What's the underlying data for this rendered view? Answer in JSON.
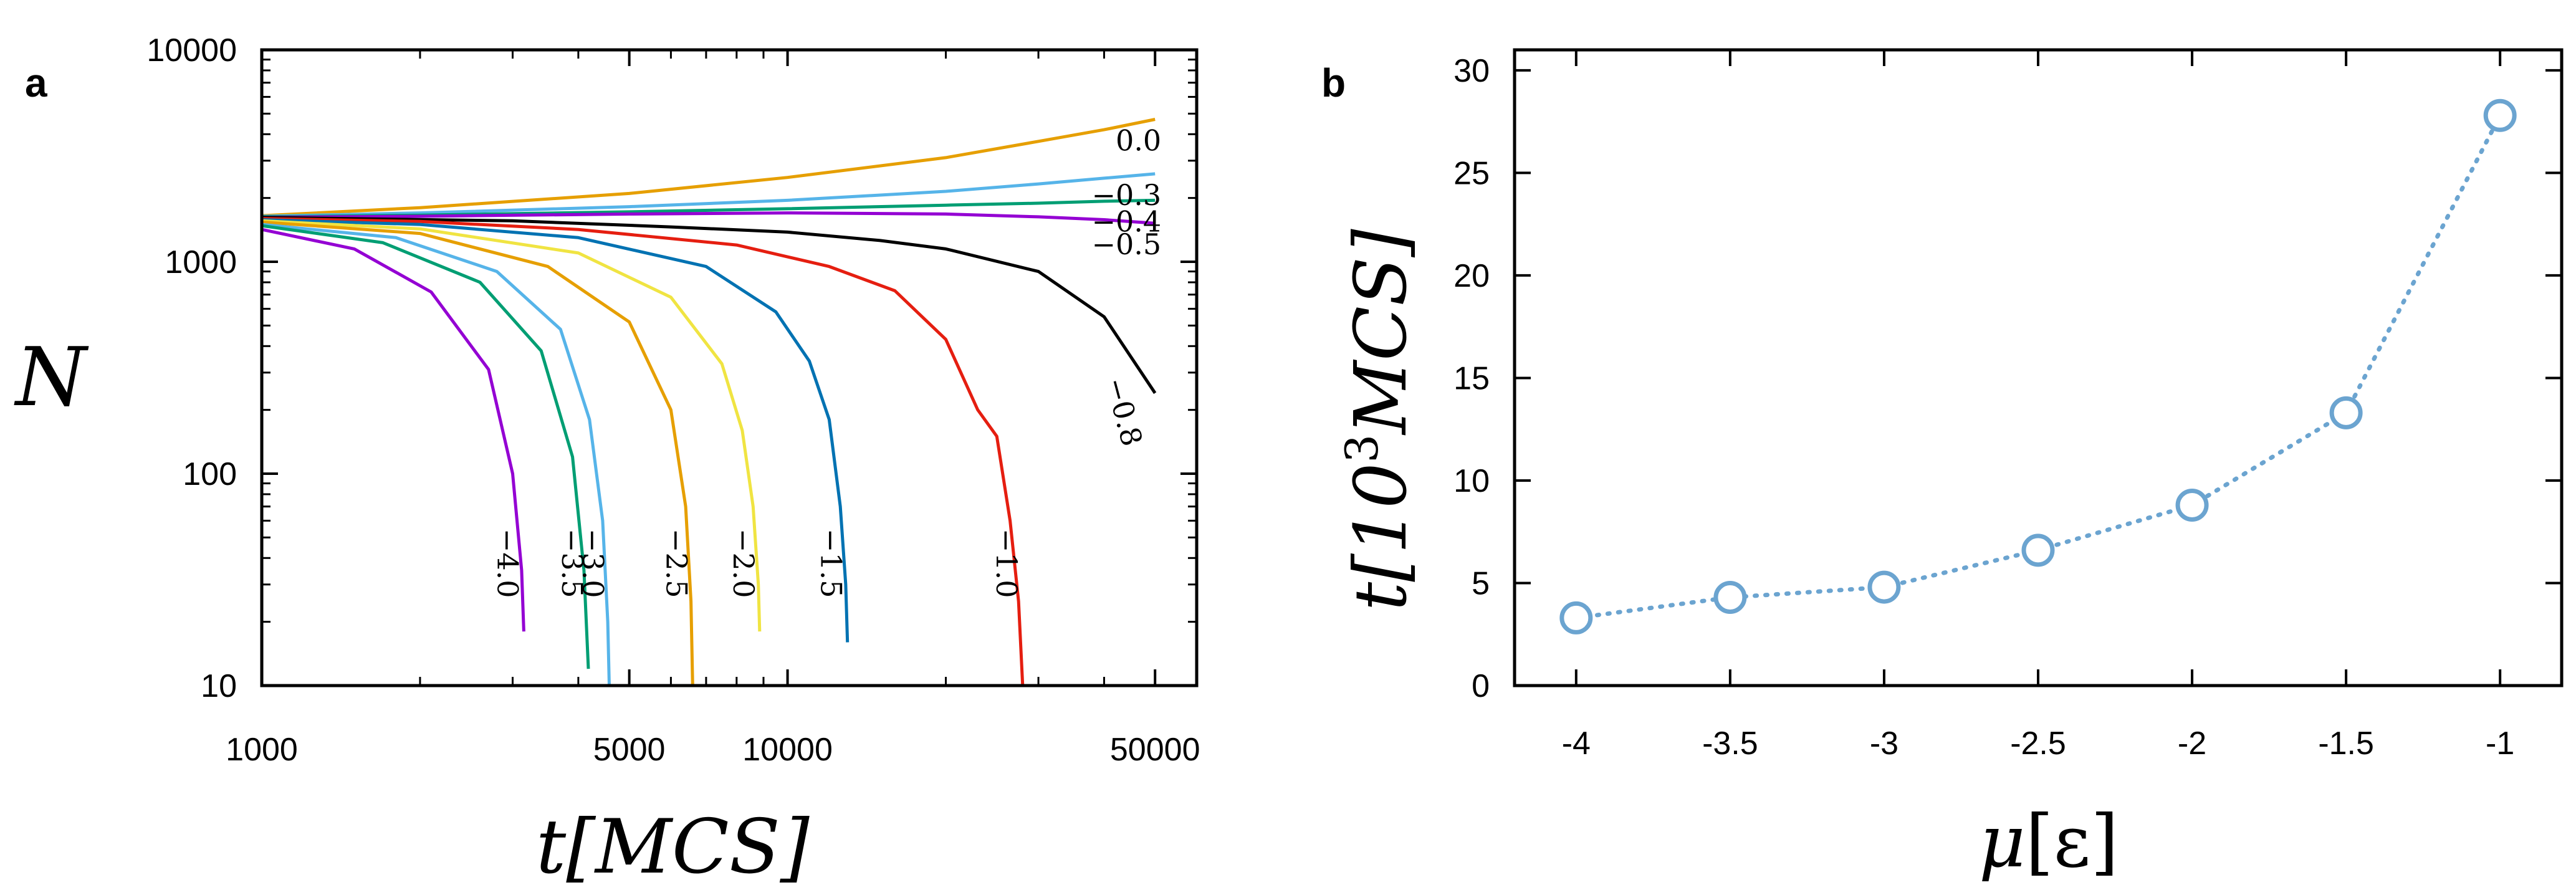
{
  "chart_data": [
    {
      "panel": "a",
      "type": "line",
      "xlabel": "t[MCS]",
      "ylabel": "N",
      "xscale": "log",
      "yscale": "log",
      "xlim": [
        1000,
        60000
      ],
      "ylim": [
        10,
        10000
      ],
      "xticks": [
        1000,
        5000,
        10000,
        50000
      ],
      "xtick_labels": [
        "1000",
        "5000",
        "10000",
        "50000"
      ],
      "yticks": [
        10,
        100,
        1000,
        10000
      ],
      "ytick_labels": [
        "10",
        "100",
        "1000",
        "10000"
      ],
      "series": [
        {
          "label": "0.0",
          "color": "#E69F00",
          "x": [
            1000,
            2000,
            5000,
            10000,
            20000,
            30000,
            40000,
            50000
          ],
          "y": [
            1650,
            1800,
            2100,
            2500,
            3100,
            3700,
            4200,
            4700
          ]
        },
        {
          "label": "−0.3",
          "color": "#56B4E9",
          "x": [
            1000,
            2000,
            5000,
            10000,
            20000,
            30000,
            40000,
            50000
          ],
          "y": [
            1640,
            1700,
            1820,
            1950,
            2150,
            2330,
            2480,
            2600
          ]
        },
        {
          "label": "−0.4",
          "color": "#009E73",
          "x": [
            1000,
            2000,
            5000,
            10000,
            20000,
            30000,
            40000,
            50000
          ],
          "y": [
            1630,
            1660,
            1720,
            1780,
            1850,
            1890,
            1930,
            1950
          ]
        },
        {
          "label": "−0.5",
          "color": "#9400D3",
          "x": [
            1000,
            2000,
            5000,
            10000,
            20000,
            30000,
            40000,
            50000
          ],
          "y": [
            1620,
            1640,
            1680,
            1700,
            1680,
            1630,
            1580,
            1520
          ]
        },
        {
          "label": "−0.8",
          "color": "#000000",
          "x": [
            1000,
            3000,
            6000,
            10000,
            15000,
            20000,
            30000,
            40000,
            50000
          ],
          "y": [
            1620,
            1560,
            1460,
            1380,
            1260,
            1150,
            900,
            550,
            240
          ]
        },
        {
          "label": "−1.0",
          "color": "#E51E10",
          "x": [
            1000,
            2000,
            4000,
            8000,
            12000,
            16000,
            20000,
            23000,
            25000,
            26500,
            27500,
            28000
          ],
          "y": [
            1600,
            1550,
            1420,
            1200,
            950,
            730,
            430,
            200,
            150,
            60,
            25,
            10
          ]
        },
        {
          "label": "−1.5",
          "color": "#0072B2",
          "x": [
            1000,
            2000,
            4000,
            7000,
            9500,
            11000,
            12000,
            12600,
            12900,
            13000
          ],
          "y": [
            1580,
            1500,
            1300,
            950,
            580,
            340,
            180,
            70,
            30,
            16
          ]
        },
        {
          "label": "−2.0",
          "color": "#F0E442",
          "x": [
            1000,
            2000,
            4000,
            6000,
            7500,
            8200,
            8600,
            8800,
            8850
          ],
          "y": [
            1560,
            1430,
            1100,
            680,
            330,
            160,
            70,
            30,
            18
          ]
        },
        {
          "label": "−2.5",
          "color": "#E69F00",
          "x": [
            1000,
            2000,
            3500,
            5000,
            6000,
            6400,
            6550,
            6600
          ],
          "y": [
            1540,
            1360,
            950,
            520,
            200,
            70,
            25,
            10
          ]
        },
        {
          "label": "−3.0",
          "color": "#56B4E9",
          "x": [
            1000,
            1800,
            2800,
            3700,
            4200,
            4450,
            4550,
            4580
          ],
          "y": [
            1500,
            1300,
            900,
            480,
            180,
            60,
            20,
            10
          ]
        },
        {
          "label": "−3.5",
          "color": "#009E73",
          "x": [
            1000,
            1700,
            2600,
            3400,
            3900,
            4100,
            4180
          ],
          "y": [
            1480,
            1230,
            800,
            380,
            120,
            35,
            12
          ]
        },
        {
          "label": "−4.0",
          "color": "#9400D3",
          "x": [
            1000,
            1500,
            2100,
            2700,
            3000,
            3120,
            3150
          ],
          "y": [
            1420,
            1150,
            720,
            310,
            100,
            35,
            18
          ]
        }
      ]
    },
    {
      "panel": "b",
      "type": "scatter",
      "xlabel": "μ[ε]",
      "ylabel": "t[10³MCS]",
      "xlim": [
        -4.2,
        -0.8
      ],
      "ylim": [
        0,
        31
      ],
      "xticks": [
        -4,
        -3.5,
        -3,
        -2.5,
        -2,
        -1.5,
        -1
      ],
      "xtick_labels": [
        "-4",
        "-3.5",
        "-3",
        "-2.5",
        "-2",
        "-1.5",
        "-1"
      ],
      "yticks": [
        0,
        5,
        10,
        15,
        20,
        25,
        30
      ],
      "ytick_labels": [
        "0",
        "5",
        "10",
        "15",
        "20",
        "25",
        "30"
      ],
      "marker": "open-circle",
      "line_style": "dotted",
      "color": "#6BA4D0",
      "x": [
        -4,
        -3.5,
        -3,
        -2.5,
        -2,
        -1.5,
        -1
      ],
      "y": [
        3.3,
        4.3,
        4.8,
        6.6,
        8.8,
        13.3,
        27.8
      ]
    }
  ],
  "panel_labels": {
    "a": "a",
    "b": "b"
  },
  "axis_labels": {
    "a_x": "t[MCS]",
    "a_y": "N",
    "b_x_main": "μ",
    "b_x_unit": "[ε]",
    "b_y_t": "t[10",
    "b_y_exp": "3",
    "b_y_rest": "MCS]"
  }
}
